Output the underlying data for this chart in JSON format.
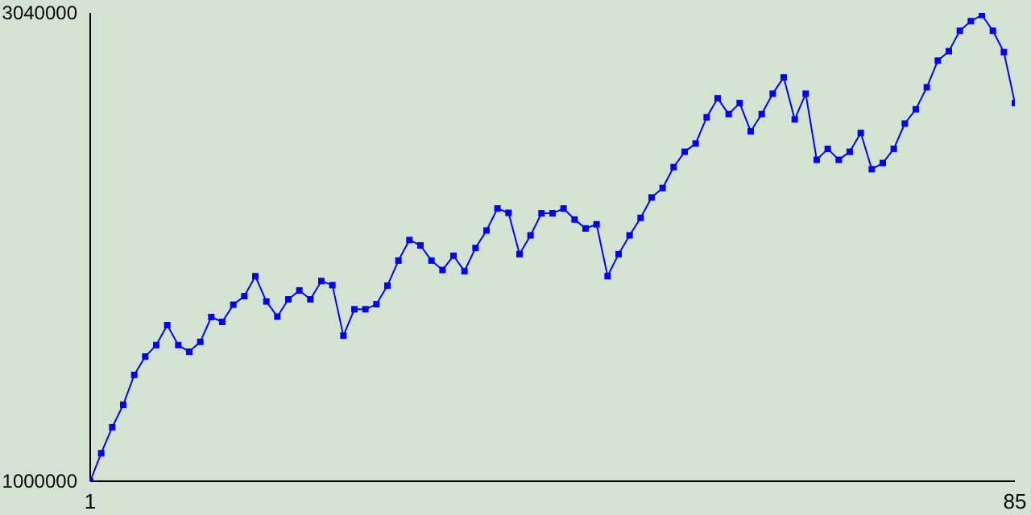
{
  "chart_data": {
    "type": "line",
    "marker": "square",
    "line_style": "solid",
    "x": [
      1,
      2,
      3,
      4,
      5,
      6,
      7,
      8,
      9,
      10,
      11,
      12,
      13,
      14,
      15,
      16,
      17,
      18,
      19,
      20,
      21,
      22,
      23,
      24,
      25,
      26,
      27,
      28,
      29,
      30,
      31,
      32,
      33,
      34,
      35,
      36,
      37,
      38,
      39,
      40,
      41,
      42,
      43,
      44,
      45,
      46,
      47,
      48,
      49,
      50,
      51,
      52,
      53,
      54,
      55,
      56,
      57,
      58,
      59,
      60,
      61,
      62,
      63,
      64,
      65,
      66,
      67,
      68,
      69,
      70,
      71,
      72,
      73,
      74,
      75,
      76,
      77,
      78,
      79,
      80,
      81,
      82,
      83,
      84,
      85
    ],
    "xlim": [
      1,
      85
    ],
    "xticks": [
      1,
      85
    ],
    "ylim": [
      1000000,
      3040000
    ],
    "yticks": [
      1000000,
      3040000
    ],
    "series": [
      {
        "color": "#0000ff",
        "values": [
          1000000,
          1122000,
          1235000,
          1333000,
          1463000,
          1543000,
          1593000,
          1680000,
          1593000,
          1564000,
          1607000,
          1715000,
          1694000,
          1769000,
          1806000,
          1893000,
          1783000,
          1717000,
          1792000,
          1831000,
          1792000,
          1872000,
          1854000,
          1634000,
          1749000,
          1749000,
          1771000,
          1852000,
          1961000,
          2051000,
          2027000,
          1961000,
          1920000,
          1982000,
          1915000,
          2016000,
          2092000,
          2188000,
          2169000,
          1989000,
          2071000,
          2167000,
          2167000,
          2188000,
          2140000,
          2101000,
          2119000,
          1893000,
          1989000,
          2071000,
          2147000,
          2236000,
          2277000,
          2368000,
          2435000,
          2471000,
          2585000,
          2668000,
          2599000,
          2647000,
          2524000,
          2599000,
          2688000,
          2759000,
          2576000,
          2688000,
          2400000,
          2448000,
          2400000,
          2435000,
          2517000,
          2359000,
          2386000,
          2448000,
          2558000,
          2620000,
          2716000,
          2832000,
          2873000,
          2962000,
          3004000,
          3031000,
          2962000,
          2869000,
          2647000
        ]
      }
    ]
  }
}
